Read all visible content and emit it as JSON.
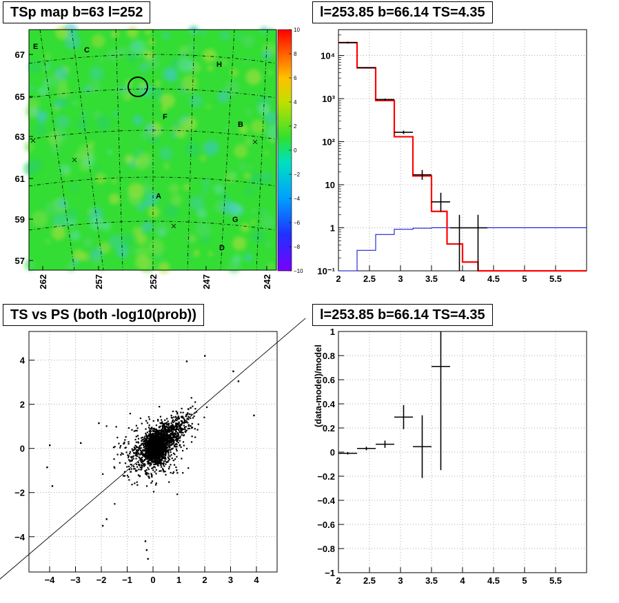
{
  "titles": {
    "map": "TSp map b=63 l=252",
    "spectrum": "l=253.85 b=66.14 TS=4.35",
    "scatter": "TS vs PS (both -log10(prob))",
    "residual": "l=253.85 b=66.14 TS=4.35"
  },
  "colors": {
    "data": "#000000",
    "model": "#ff0000",
    "background": "#0000cc",
    "map_base": "#33dd33"
  },
  "chart_data": [
    {
      "type": "heatmap",
      "title": "TSp map b=63 l=252",
      "x_tick_labels": [
        "262",
        "257",
        "252",
        "247",
        "242"
      ],
      "y_tick_labels": [
        "67",
        "65",
        "63",
        "61",
        "59",
        "57"
      ],
      "colorbar": {
        "min": -10,
        "max": 10,
        "ticks": [
          "10",
          "8",
          "6",
          "4",
          "2",
          "0",
          "−2",
          "−4",
          "−6",
          "−8",
          "−10"
        ]
      },
      "annotations": [
        "C",
        "E",
        "H",
        "F",
        "B",
        "A",
        "G",
        "D"
      ],
      "grid": true
    },
    {
      "type": "line",
      "title": "l=253.85 b=66.14 TS=4.35",
      "y_scale": "log",
      "xlim": [
        2,
        6
      ],
      "ylim": [
        0.1,
        40000
      ],
      "x_tick_labels": [
        "2",
        "2.5",
        "3",
        "3.5",
        "4",
        "4.5",
        "5",
        "5.5"
      ],
      "y_tick_labels": [
        "10⁴",
        "10³",
        "10²",
        "10",
        "1",
        "10⁻¹"
      ],
      "model_step": {
        "edges": [
          2.0,
          2.3,
          2.6,
          2.9,
          3.2,
          3.5,
          3.75,
          4.0,
          4.25,
          4.5,
          6.0
        ],
        "values": [
          20000,
          5200,
          900,
          130,
          16,
          2.4,
          0.42,
          0.16,
          0.1,
          0.1
        ]
      },
      "background_step": {
        "edges": [
          2.0,
          2.3,
          2.6,
          2.9,
          3.2,
          3.5,
          6.0
        ],
        "values": [
          0.1,
          0.3,
          0.7,
          0.92,
          0.98,
          1.0
        ]
      },
      "data_points": [
        {
          "x": 2.15,
          "y": 20000,
          "xerr": 0.15,
          "ylo": 19000,
          "yhi": 21000
        },
        {
          "x": 2.45,
          "y": 5200,
          "xerr": 0.15,
          "ylo": 5000,
          "yhi": 5400
        },
        {
          "x": 2.75,
          "y": 950,
          "xerr": 0.15,
          "ylo": 900,
          "yhi": 1000
        },
        {
          "x": 3.05,
          "y": 165,
          "xerr": 0.15,
          "ylo": 150,
          "yhi": 180
        },
        {
          "x": 3.35,
          "y": 17,
          "xerr": 0.15,
          "ylo": 13,
          "yhi": 22
        },
        {
          "x": 3.65,
          "y": 4,
          "xerr": 0.15,
          "ylo": 2.4,
          "yhi": 6.5
        },
        {
          "x": 3.95,
          "y": 1,
          "xerr": 0.15,
          "ylo": 0.1,
          "yhi": 2.0
        },
        {
          "x": 4.25,
          "y": 1,
          "xerr": 0.15,
          "ylo": 0.1,
          "yhi": 2.0
        }
      ],
      "grid": true
    },
    {
      "type": "scatter",
      "title": "TS vs PS (both -log10(prob))",
      "xlim": [
        -4.8,
        4.8
      ],
      "ylim": [
        -5.6,
        5.3
      ],
      "x_tick_labels": [
        "−4",
        "−3",
        "−2",
        "−1",
        "0",
        "1",
        "2",
        "3",
        "4"
      ],
      "y_tick_labels": [
        "4",
        "2",
        "0",
        "−2",
        "−4"
      ],
      "diagonal_line": [
        [
          -6.3,
          -6.3
        ],
        [
          5.9,
          5.9
        ]
      ],
      "outliers": [
        [
          -4.0,
          0.15
        ],
        [
          -3.9,
          -1.7
        ],
        [
          -4.1,
          -0.85
        ],
        [
          3.9,
          1.5
        ],
        [
          3.3,
          3.05
        ],
        [
          3.1,
          3.5
        ],
        [
          2.0,
          4.2
        ],
        [
          1.3,
          3.95
        ],
        [
          -0.25,
          -4.6
        ],
        [
          -0.3,
          -4.2
        ],
        [
          -1.95,
          -3.5
        ],
        [
          -1.8,
          -3.2
        ],
        [
          -2.1,
          1.15
        ],
        [
          -2.8,
          0.25
        ],
        [
          -0.2,
          -5.0
        ]
      ],
      "grid": true
    },
    {
      "type": "scatter",
      "title": "l=253.85 b=66.14 TS=4.35",
      "ylabel": "(data-model)/model",
      "xlim": [
        2,
        6
      ],
      "ylim": [
        -1,
        1
      ],
      "x_tick_labels": [
        "2",
        "2.5",
        "3",
        "3.5",
        "4",
        "4.5",
        "5",
        "5.5"
      ],
      "y_tick_labels": [
        "1",
        "0.8",
        "0.6",
        "0.4",
        "0.2",
        "0",
        "−0.2",
        "−0.4",
        "−0.6",
        "−0.8",
        "−1"
      ],
      "points": [
        {
          "x": 2.15,
          "y": -0.01,
          "xerr": 0.15,
          "yerr": 0.01
        },
        {
          "x": 2.45,
          "y": 0.03,
          "xerr": 0.15,
          "yerr": 0.015
        },
        {
          "x": 2.75,
          "y": 0.065,
          "xerr": 0.15,
          "yerr": 0.03
        },
        {
          "x": 3.05,
          "y": 0.29,
          "xerr": 0.15,
          "yerr": 0.1
        },
        {
          "x": 3.35,
          "y": 0.045,
          "xerr": 0.15,
          "yerr": 0.26
        },
        {
          "x": 3.65,
          "y": 0.71,
          "xerr": 0.15,
          "yerr": 0.86
        }
      ],
      "grid": true
    }
  ]
}
